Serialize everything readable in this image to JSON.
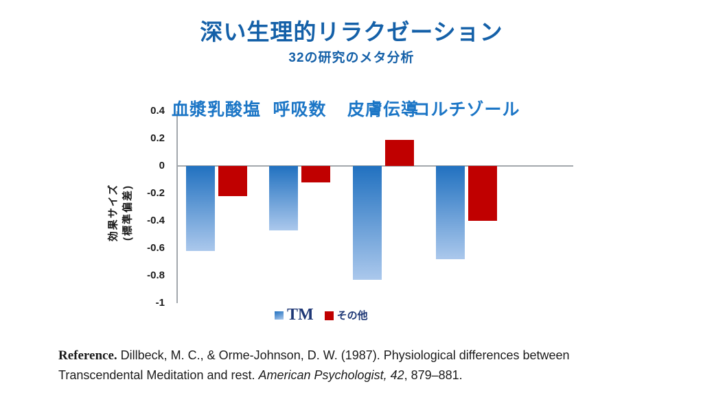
{
  "title": "深い生理的リラクゼーション",
  "subtitle": "32の研究のメタ分析",
  "colors": {
    "title_blue": "#1460A8",
    "category_blue": "#1C76C6",
    "bar_blue_top": "#2171C0",
    "bar_blue_bottom": "#ABC8EC",
    "bar_red": "#C00000",
    "legend_navy": "#1F3876",
    "axis_color": "#A2A7AC",
    "text_dark": "#1A1A1A"
  },
  "chart_data": {
    "type": "bar",
    "categories": [
      "血漿乳酸塩",
      "呼吸数",
      "皮膚伝導",
      "コルチゾール"
    ],
    "series": [
      {
        "name": "TM",
        "values": [
          -0.62,
          -0.47,
          -0.83,
          -0.68
        ]
      },
      {
        "name": "その他",
        "values": [
          -0.22,
          -0.12,
          0.19,
          -0.4
        ]
      }
    ],
    "ylabel_line1": "効果サイズ",
    "ylabel_line2": "(標準偏差)",
    "yticks": [
      0.4,
      0.2,
      0,
      -0.2,
      -0.4,
      -0.6,
      -0.8,
      -1
    ],
    "ytick_labels": [
      "0.4",
      "0.2",
      "0",
      "-0.2",
      "-0.4",
      "-0.6",
      "-0.8",
      "-1"
    ],
    "ylim": [
      -1,
      0.4
    ],
    "grid": false,
    "legend_position": "bottom"
  },
  "reference": {
    "label": "Reference.",
    "text_before_italic": " Dillbeck, M. C., & Orme-Johnson, D. W. (1987). Physiological differences between Transcendental Meditation and rest. ",
    "italic": "American Psychologist, 42",
    "text_after_italic": ", 879–881."
  }
}
